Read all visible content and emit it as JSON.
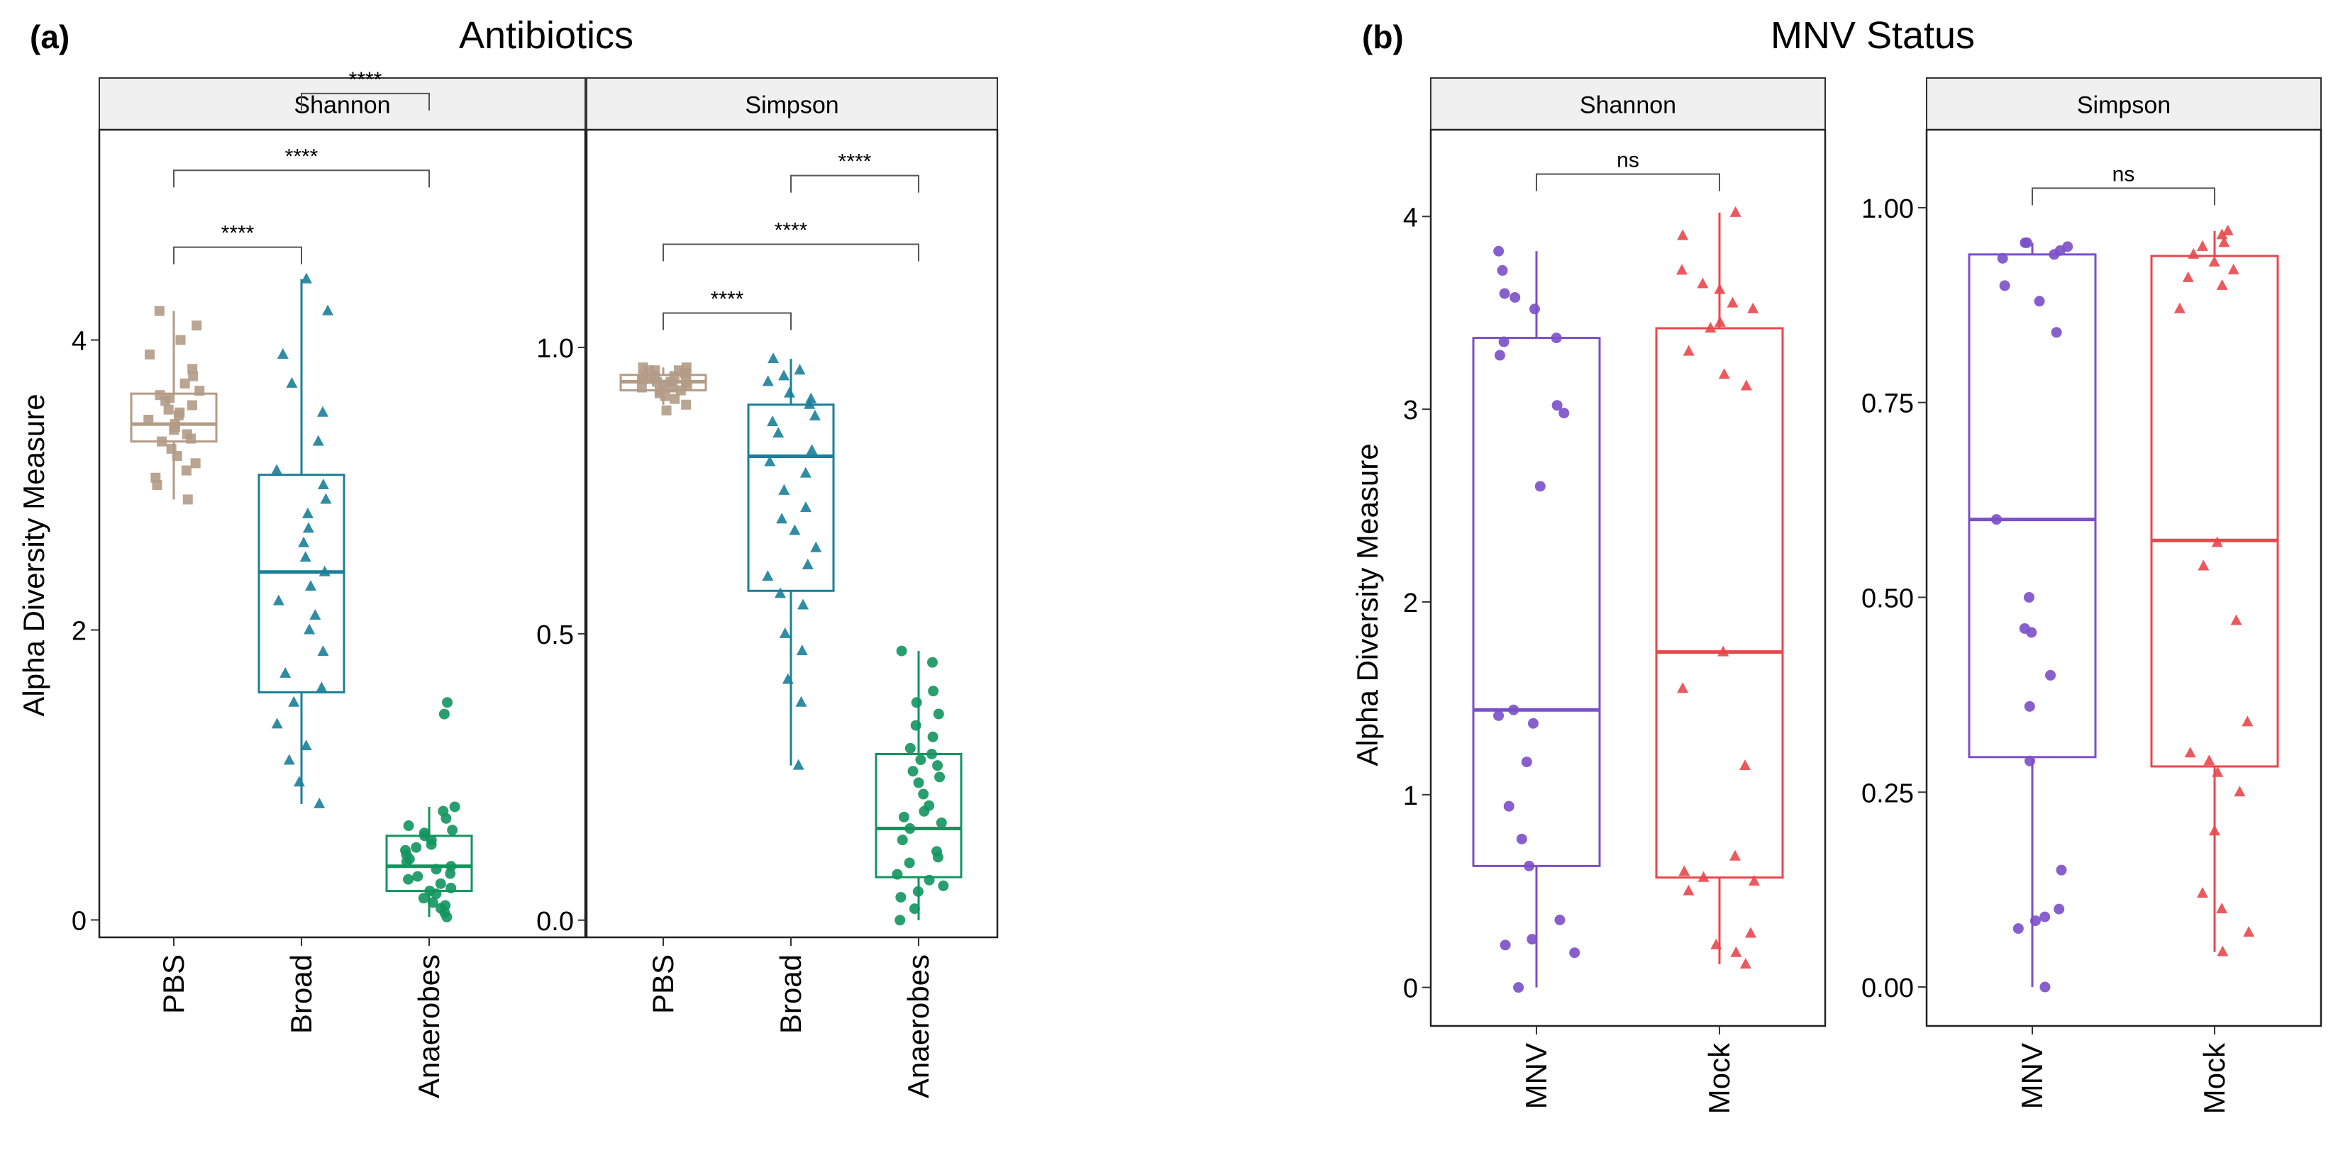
{
  "panels": [
    {
      "label": "(a)",
      "title": "Antibiotics",
      "ylabel": "Alpha Diversity Measure",
      "categories": [
        "PBS",
        "Broad",
        "Anaerobes"
      ],
      "colors": [
        "#B39B86",
        "#1A7F99",
        "#12955F"
      ],
      "shapes": [
        "square",
        "triangle",
        "circle"
      ],
      "facets": [
        {
          "strip": "Shannon",
          "ylim": [
            -0.12,
            5.45
          ],
          "ticks": [
            0,
            2,
            4
          ],
          "tick_labels": [
            "0",
            "2",
            "4"
          ],
          "boxes": [
            {
              "category": "PBS",
              "lower": 2.9,
              "q1": 3.3,
              "median": 3.42,
              "q3": 3.63,
              "upper": 4.2
            },
            {
              "category": "Broad",
              "lower": 0.8,
              "q1": 1.57,
              "median": 2.4,
              "q3": 3.07,
              "upper": 4.42
            },
            {
              "category": "Anaerobes",
              "lower": 0.02,
              "q1": 0.2,
              "median": 0.37,
              "q3": 0.58,
              "upper": 0.78
            }
          ],
          "points": [
            [
              3.0,
              3.1,
              3.2,
              3.25,
              3.3,
              3.32,
              3.35,
              3.38,
              3.4,
              3.42,
              3.45,
              3.48,
              3.5,
              3.52,
              3.55,
              3.58,
              3.6,
              3.62,
              3.65,
              3.7,
              3.75,
              3.8,
              3.9,
              4.0,
              4.1,
              4.2,
              2.9,
              3.05,
              3.15
            ],
            [
              0.8,
              0.95,
              1.1,
              1.2,
              1.35,
              1.5,
              1.6,
              1.7,
              1.85,
              2.0,
              2.1,
              2.2,
              2.3,
              2.4,
              2.5,
              2.6,
              2.7,
              2.8,
              2.9,
              3.0,
              3.1,
              3.3,
              3.5,
              3.7,
              3.9,
              4.2,
              4.42
            ],
            [
              0.02,
              0.05,
              0.08,
              0.1,
              0.12,
              0.15,
              0.18,
              0.2,
              0.22,
              0.25,
              0.28,
              0.3,
              0.32,
              0.35,
              0.37,
              0.4,
              0.42,
              0.45,
              0.48,
              0.5,
              0.52,
              0.55,
              0.58,
              0.6,
              0.62,
              0.65,
              0.7,
              0.75,
              0.78,
              1.42,
              1.5
            ]
          ],
          "brackets": [
            {
              "from": 0,
              "to": 1,
              "y": 4.64,
              "label": "****"
            },
            {
              "from": 0,
              "to": 2,
              "y": 5.17,
              "label": "****"
            },
            {
              "from": 1,
              "to": 2,
              "y": 5.7,
              "label": "****"
            }
          ]
        },
        {
          "strip": "Simpson",
          "ylim": [
            -0.03,
            1.38
          ],
          "ticks": [
            0,
            0.5,
            1.0
          ],
          "tick_labels": [
            "0.0",
            "0.5",
            "1.0"
          ],
          "boxes": [
            {
              "category": "PBS",
              "lower": 0.9,
              "q1": 0.925,
              "median": 0.94,
              "q3": 0.952,
              "upper": 0.965
            },
            {
              "category": "Broad",
              "lower": 0.27,
              "q1": 0.575,
              "median": 0.81,
              "q3": 0.9,
              "upper": 0.98
            },
            {
              "category": "Anaerobes",
              "lower": 0.0,
              "q1": 0.075,
              "median": 0.16,
              "q3": 0.29,
              "upper": 0.47
            }
          ],
          "points": [
            [
              0.89,
              0.9,
              0.91,
              0.915,
              0.92,
              0.925,
              0.93,
              0.93,
              0.935,
              0.94,
              0.94,
              0.945,
              0.945,
              0.95,
              0.95,
              0.955,
              0.955,
              0.96,
              0.96,
              0.965,
              0.965,
              0.935,
              0.925,
              0.945,
              0.95,
              0.94,
              0.96
            ],
            [
              0.27,
              0.38,
              0.42,
              0.47,
              0.5,
              0.55,
              0.57,
              0.6,
              0.62,
              0.65,
              0.68,
              0.7,
              0.72,
              0.75,
              0.78,
              0.8,
              0.82,
              0.85,
              0.87,
              0.88,
              0.9,
              0.91,
              0.92,
              0.94,
              0.95,
              0.96,
              0.98
            ],
            [
              0.0,
              0.02,
              0.04,
              0.05,
              0.07,
              0.08,
              0.1,
              0.12,
              0.14,
              0.16,
              0.17,
              0.18,
              0.2,
              0.22,
              0.24,
              0.25,
              0.27,
              0.28,
              0.29,
              0.3,
              0.32,
              0.34,
              0.36,
              0.38,
              0.4,
              0.45,
              0.47,
              0.06,
              0.11,
              0.19,
              0.26
            ]
          ],
          "brackets": [
            {
              "from": 0,
              "to": 1,
              "y": 1.06,
              "label": "****"
            },
            {
              "from": 0,
              "to": 2,
              "y": 1.18,
              "label": "****"
            },
            {
              "from": 1,
              "to": 2,
              "y": 1.3,
              "label": "****"
            }
          ]
        }
      ]
    },
    {
      "label": "(b)",
      "title": "MNV Status",
      "ylabel": "Alpha Diversity Measure",
      "categories": [
        "MNV",
        "Mock"
      ],
      "colors": [
        "#7B4FC9",
        "#E8474D"
      ],
      "shapes": [
        "circle",
        "triangle"
      ],
      "facets": [
        {
          "strip": "Shannon",
          "ylim": [
            -0.2,
            4.45
          ],
          "ticks": [
            0,
            1,
            2,
            3,
            4
          ],
          "tick_labels": [
            "0",
            "1",
            "2",
            "3",
            "4"
          ],
          "boxes": [
            {
              "category": "MNV",
              "lower": 0.0,
              "q1": 0.63,
              "median": 1.44,
              "q3": 3.37,
              "upper": 3.82
            },
            {
              "category": "Mock",
              "lower": 0.12,
              "q1": 0.57,
              "median": 1.74,
              "q3": 3.42,
              "upper": 4.02
            }
          ],
          "points": [
            [
              0.0,
              0.18,
              0.22,
              0.25,
              0.35,
              0.63,
              0.77,
              0.94,
              1.17,
              1.37,
              1.41,
              1.44,
              2.6,
              2.98,
              3.02,
              3.28,
              3.35,
              3.37,
              3.52,
              3.58,
              3.6,
              3.72,
              3.82
            ],
            [
              0.12,
              0.18,
              0.22,
              0.28,
              0.5,
              0.55,
              0.57,
              0.6,
              0.68,
              1.15,
              1.55,
              1.74,
              3.12,
              3.18,
              3.3,
              3.42,
              3.45,
              3.52,
              3.55,
              3.62,
              3.65,
              3.72,
              3.9,
              4.02
            ]
          ],
          "brackets": [
            {
              "from": 0,
              "to": 1,
              "y": 4.22,
              "label": "ns"
            }
          ]
        },
        {
          "strip": "Simpson",
          "ylim": [
            -0.05,
            1.1
          ],
          "ticks": [
            0,
            0.25,
            0.5,
            0.75,
            1.0
          ],
          "tick_labels": [
            "0.00",
            "0.25",
            "0.50",
            "0.75",
            "1.00"
          ],
          "boxes": [
            {
              "category": "MNV",
              "lower": 0.0,
              "q1": 0.295,
              "median": 0.6,
              "q3": 0.94,
              "upper": 0.955
            },
            {
              "category": "Mock",
              "lower": 0.045,
              "q1": 0.283,
              "median": 0.573,
              "q3": 0.938,
              "upper": 0.97
            }
          ],
          "points": [
            [
              0.0,
              0.075,
              0.085,
              0.09,
              0.1,
              0.15,
              0.29,
              0.36,
              0.4,
              0.455,
              0.46,
              0.5,
              0.6,
              0.84,
              0.88,
              0.9,
              0.935,
              0.94,
              0.945,
              0.95,
              0.955,
              0.955
            ],
            [
              0.045,
              0.07,
              0.1,
              0.12,
              0.2,
              0.25,
              0.275,
              0.29,
              0.3,
              0.34,
              0.47,
              0.54,
              0.57,
              0.87,
              0.9,
              0.91,
              0.92,
              0.93,
              0.94,
              0.95,
              0.955,
              0.965,
              0.97
            ]
          ],
          "brackets": [
            {
              "from": 0,
              "to": 1,
              "y": 1.025,
              "label": "ns"
            }
          ]
        }
      ]
    }
  ],
  "chart_data": [
    {
      "type": "box",
      "title": "Antibiotics",
      "ylabel": "Alpha Diversity Measure",
      "facets": [
        "Shannon",
        "Simpson"
      ],
      "categories": [
        "PBS",
        "Broad",
        "Anaerobes"
      ],
      "series": [
        {
          "name": "Shannon",
          "medians": [
            3.42,
            2.4,
            0.37
          ],
          "q1": [
            3.3,
            1.57,
            0.2
          ],
          "q3": [
            3.63,
            3.07,
            0.58
          ],
          "whisker_low": [
            2.9,
            0.8,
            0.02
          ],
          "whisker_high": [
            4.2,
            4.42,
            0.78
          ],
          "ylim": [
            -0.12,
            5.45
          ],
          "significance": [
            "PBS vs Broad ****",
            "PBS vs Anaerobes ****",
            "Broad vs Anaerobes ****"
          ]
        },
        {
          "name": "Simpson",
          "medians": [
            0.94,
            0.81,
            0.16
          ],
          "q1": [
            0.925,
            0.575,
            0.075
          ],
          "q3": [
            0.952,
            0.9,
            0.29
          ],
          "whisker_low": [
            0.9,
            0.27,
            0.0
          ],
          "whisker_high": [
            0.965,
            0.98,
            0.47
          ],
          "ylim": [
            -0.03,
            1.38
          ],
          "significance": [
            "PBS vs Broad ****",
            "PBS vs Anaerobes ****",
            "Broad vs Anaerobes ****"
          ]
        }
      ]
    },
    {
      "type": "box",
      "title": "MNV Status",
      "ylabel": "Alpha Diversity Measure",
      "facets": [
        "Shannon",
        "Simpson"
      ],
      "categories": [
        "MNV",
        "Mock"
      ],
      "series": [
        {
          "name": "Shannon",
          "medians": [
            1.44,
            1.74
          ],
          "q1": [
            0.63,
            0.57
          ],
          "q3": [
            3.37,
            3.42
          ],
          "whisker_low": [
            0.0,
            0.12
          ],
          "whisker_high": [
            3.82,
            4.02
          ],
          "ylim": [
            -0.2,
            4.45
          ],
          "significance": [
            "MNV vs Mock ns"
          ]
        },
        {
          "name": "Simpson",
          "medians": [
            0.6,
            0.573
          ],
          "q1": [
            0.295,
            0.283
          ],
          "q3": [
            0.94,
            0.938
          ],
          "whisker_low": [
            0.0,
            0.045
          ],
          "whisker_high": [
            0.955,
            0.97
          ],
          "ylim": [
            -0.05,
            1.1
          ],
          "significance": [
            "MNV vs Mock ns"
          ]
        }
      ]
    }
  ]
}
